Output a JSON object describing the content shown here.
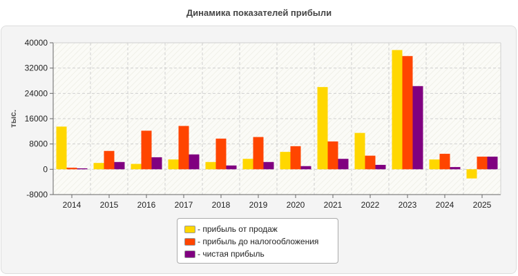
{
  "chart_data": {
    "type": "bar",
    "title": "Динамика показателей прибыли",
    "ylabel": "тыс.",
    "xlabel": "",
    "ylim": [
      -8000,
      40000
    ],
    "yticks": [
      40000,
      32000,
      24000,
      16000,
      8000,
      0,
      -8000
    ],
    "grid": true,
    "legend_position": "bottom",
    "categories": [
      "2014",
      "2015",
      "2016",
      "2017",
      "2018",
      "2019",
      "2020",
      "2021",
      "2022",
      "2023",
      "2024",
      "2025"
    ],
    "series": [
      {
        "name": "- прибыль от продаж",
        "color": "#ffd700",
        "values": [
          13500,
          2000,
          1700,
          3100,
          2300,
          3300,
          5500,
          26000,
          11500,
          37700,
          3100,
          -2900
        ]
      },
      {
        "name": "- прибыль до налогообложения",
        "color": "#ff4500",
        "values": [
          500,
          5800,
          12200,
          13700,
          9700,
          10200,
          7300,
          8800,
          4300,
          35800,
          4900,
          4000
        ]
      },
      {
        "name": "- чистая прибыль",
        "color": "#800080",
        "values": [
          300,
          2300,
          3800,
          4700,
          1200,
          2300,
          1000,
          3300,
          1400,
          26300,
          700,
          4000
        ]
      }
    ]
  }
}
